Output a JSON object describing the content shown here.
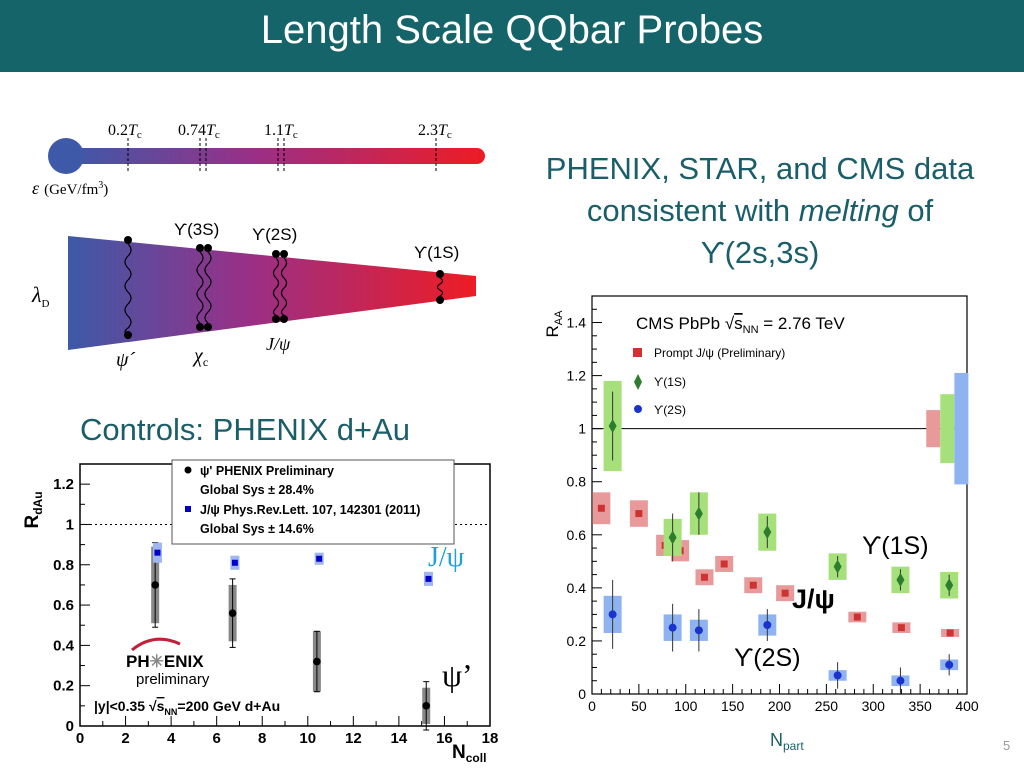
{
  "slide": {
    "title": "Length Scale QQbar Probes",
    "blurb_line1": "PHENIX, STAR, and CMS data",
    "blurb_line2_a": "consistent with ",
    "blurb_line2_b": "melting",
    "blurb_line2_c": " of",
    "blurb_line3": "ϒ(2s,3s)",
    "controls_label": "Controls:  PHENIX d+Au",
    "page_number": "5"
  },
  "thermometer": {
    "ticks": [
      {
        "value": "0.2",
        "unit": "T",
        "sub": "c"
      },
      {
        "value": "0.74",
        "unit": "T",
        "sub": "c"
      },
      {
        "value": "1.1",
        "unit": "T",
        "sub": "c"
      },
      {
        "value": "2.3",
        "unit": "T",
        "sub": "c"
      }
    ],
    "epsilon_symbol": "ε",
    "epsilon_unit": "(GeV/fm",
    "epsilon_sup": "3",
    "epsilon_close": ")",
    "cold_color": "#3d59a8",
    "hot_color": "#ee1c24"
  },
  "wedge": {
    "lambda_symbol": "λ",
    "lambda_sub": "D",
    "states": {
      "psi_prime": "ψ´",
      "chi_c": "χ",
      "chi_c_sub": "c",
      "jpsi": "J/ψ",
      "ups3s": "ϒ(3S)",
      "ups2s": "ϒ(2S)",
      "ups1s": "ϒ(1S)"
    }
  },
  "chart_data": [
    {
      "type": "scatter",
      "ylabel": "R",
      "ylabel_sub": "dAu",
      "xlabel": "N",
      "xlabel_sub": "coll",
      "xlim": [
        0,
        18
      ],
      "ylim": [
        0,
        1.3
      ],
      "x_ticks": [
        "0",
        "2",
        "4",
        "6",
        "8",
        "10",
        "12",
        "14",
        "16",
        "18"
      ],
      "y_ticks": [
        "0",
        "0.2",
        "0.4",
        "0.6",
        "0.8",
        "1",
        "1.2"
      ],
      "reference_line": 1,
      "legend": {
        "entry1": "ψ' PHENIX Preliminary",
        "entry1_sys": "Global Sys ± 28.4%",
        "entry2": "J/ψ Phys.Rev.Lett. 107, 142301 (2011)",
        "entry2_sys": "Global Sys ± 14.6%"
      },
      "series": [
        {
          "name": "ψ' PHENIX Preliminary",
          "color": "#000000",
          "points": [
            {
              "x": 3.3,
              "y": 0.7,
              "err": 0.21,
              "sys": 0.19
            },
            {
              "x": 6.7,
              "y": 0.56,
              "err": 0.17,
              "sys": 0.14
            },
            {
              "x": 10.4,
              "y": 0.32,
              "err": 0.15,
              "sys": 0.15
            },
            {
              "x": 15.2,
              "y": 0.1,
              "err": 0.12,
              "sys": 0.09
            }
          ]
        },
        {
          "name": "J/ψ Phys.Rev.Lett. 107, 142301 (2011)",
          "color": "#0000cc",
          "points": [
            {
              "x": 3.4,
              "y": 0.86,
              "err": 0.04,
              "sys": 0.04
            },
            {
              "x": 6.8,
              "y": 0.81,
              "err": 0.025,
              "sys": 0.025
            },
            {
              "x": 10.5,
              "y": 0.83,
              "err": 0.02,
              "sys": 0.02
            },
            {
              "x": 15.3,
              "y": 0.73,
              "err": 0.025,
              "sys": 0.025
            }
          ]
        }
      ],
      "labels": {
        "jpsi": "J/ψ",
        "psi_prime": "ψ’",
        "logo_ph": "PH",
        "logo_star": "✳",
        "logo_enix": "ENIX",
        "logo_prelim": "preliminary",
        "cut_a": "|y|<0.35 ",
        "cut_s": "s",
        "cut_nn": "NN",
        "cut_b": "=200 GeV d+Au"
      }
    },
    {
      "type": "scatter",
      "ylabel": "R",
      "ylabel_sub": "AA",
      "xlabel": "N",
      "xlabel_sub": "part",
      "xlim": [
        0,
        400
      ],
      "ylim": [
        0,
        1.5
      ],
      "x_ticks": [
        "0",
        "50",
        "100",
        "150",
        "200",
        "250",
        "300",
        "350",
        "400"
      ],
      "y_ticks": [
        "0",
        "0.2",
        "0.4",
        "0.6",
        "0.8",
        "1",
        "1.2",
        "1.4"
      ],
      "reference_line": 1,
      "header_a": "CMS PbPb  ",
      "header_s": "s",
      "header_nn": "NN",
      "header_b": " = 2.76 TeV",
      "legend": {
        "entry1": "Prompt J/ψ (Preliminary)",
        "entry2": "ϒ(1S)",
        "entry3": "ϒ(2S)"
      },
      "series": [
        {
          "name": "Prompt J/ψ (Preliminary)",
          "color": "#cc3333",
          "box_color": "#e89a9a",
          "points": [
            {
              "x": 10,
              "y": 0.7,
              "sys": 0.06
            },
            {
              "x": 50,
              "y": 0.68,
              "sys": 0.05
            },
            {
              "x": 78,
              "y": 0.56,
              "sys": 0.04
            },
            {
              "x": 94,
              "y": 0.54,
              "sys": 0.04
            },
            {
              "x": 120,
              "y": 0.44,
              "sys": 0.03
            },
            {
              "x": 141,
              "y": 0.49,
              "sys": 0.03
            },
            {
              "x": 172,
              "y": 0.41,
              "sys": 0.03
            },
            {
              "x": 206,
              "y": 0.38,
              "sys": 0.03
            },
            {
              "x": 283,
              "y": 0.29,
              "sys": 0.02
            },
            {
              "x": 330,
              "y": 0.25,
              "sys": 0.02
            },
            {
              "x": 382,
              "y": 0.23,
              "sys": 0.015
            }
          ],
          "global_box": {
            "x": 364,
            "lo": 0.93,
            "hi": 1.07
          }
        },
        {
          "name": "ϒ(1S)",
          "color": "#2e7d2e",
          "box_color": "#a6e07a",
          "points": [
            {
              "x": 22,
              "y": 1.01,
              "err": 0.13,
              "sys": 0.17
            },
            {
              "x": 86,
              "y": 0.59,
              "err": 0.09,
              "sys": 0.07
            },
            {
              "x": 114,
              "y": 0.68,
              "err": 0.08,
              "sys": 0.08
            },
            {
              "x": 187,
              "y": 0.61,
              "err": 0.06,
              "sys": 0.07
            },
            {
              "x": 262,
              "y": 0.48,
              "err": 0.04,
              "sys": 0.05
            },
            {
              "x": 329,
              "y": 0.43,
              "err": 0.04,
              "sys": 0.05
            },
            {
              "x": 381,
              "y": 0.41,
              "err": 0.04,
              "sys": 0.05
            }
          ],
          "global_box": {
            "x": 379,
            "lo": 0.87,
            "hi": 1.13
          }
        },
        {
          "name": "ϒ(2S)",
          "color": "#1a33cc",
          "box_color": "#8fb3f0",
          "points": [
            {
              "x": 22,
              "y": 0.3,
              "err": 0.13,
              "sys": 0.07
            },
            {
              "x": 86,
              "y": 0.25,
              "err": 0.09,
              "sys": 0.05
            },
            {
              "x": 114,
              "y": 0.24,
              "err": 0.08,
              "sys": 0.04
            },
            {
              "x": 187,
              "y": 0.26,
              "err": 0.06,
              "sys": 0.04
            },
            {
              "x": 262,
              "y": 0.07,
              "err": 0.05,
              "sys": 0.02
            },
            {
              "x": 329,
              "y": 0.05,
              "err": 0.05,
              "sys": 0.02
            },
            {
              "x": 381,
              "y": 0.11,
              "err": 0.04,
              "sys": 0.02
            }
          ],
          "global_box": {
            "x": 394,
            "lo": 0.79,
            "hi": 1.21
          }
        }
      ],
      "labels": {
        "ups1s": "ϒ(1S)",
        "jpsi": "J/ψ",
        "ups2s": "ϒ(2S)"
      }
    }
  ]
}
